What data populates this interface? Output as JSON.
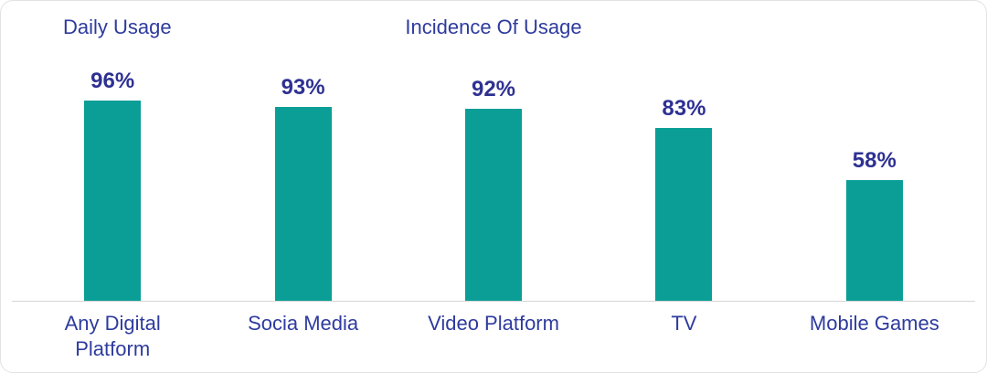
{
  "header": {
    "left_title": "Daily Usage",
    "center_title": "Incidence Of Usage"
  },
  "colors": {
    "bar": "#0a9e96",
    "title_blue": "#2e3b9e",
    "value_navy": "#2e3192",
    "axis_line": "#d6d6d6"
  },
  "chart_data": {
    "type": "bar",
    "title": "Incidence Of Usage",
    "subtitle": "Daily Usage",
    "categories": [
      "Any Digital Platform",
      "Socia Media",
      "Video Platform",
      "TV",
      "Mobile Games"
    ],
    "values": [
      96,
      93,
      92,
      83,
      58
    ],
    "value_labels": [
      "96%",
      "93%",
      "92%",
      "83%",
      "58%"
    ],
    "xlabel": "",
    "ylabel": "",
    "ylim": [
      0,
      100
    ],
    "grid": false,
    "legend": "none",
    "value_label_position": "above-bar"
  }
}
